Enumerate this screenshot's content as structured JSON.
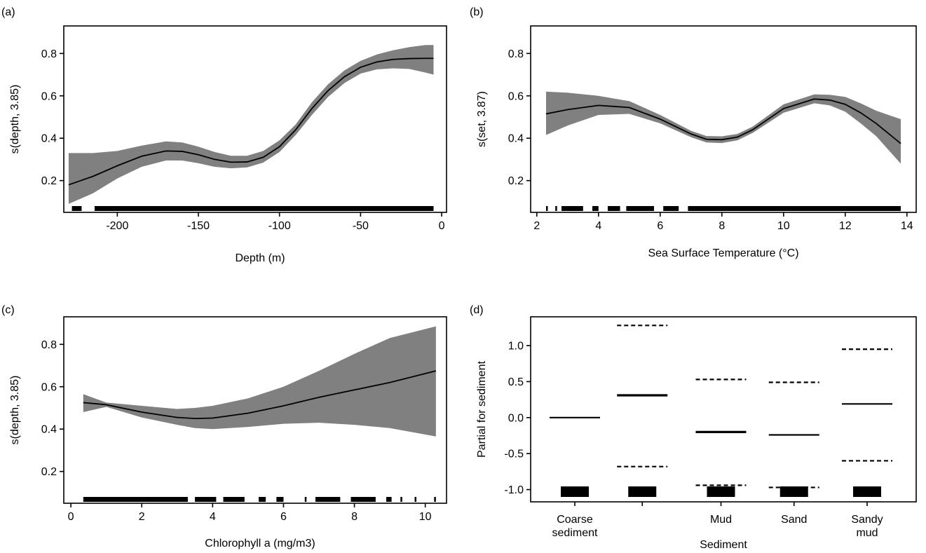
{
  "chart_data": [
    {
      "panel": "(a)",
      "type": "line",
      "xlabel": "Depth (m)",
      "ylabel": "s(depth, 3.85)",
      "xlim": [
        -233,
        3
      ],
      "ylim": [
        0.05,
        0.93
      ],
      "xticks": [
        -200,
        -150,
        -100,
        -50,
        0
      ],
      "yticks": [
        0.2,
        0.4,
        0.6,
        0.8
      ],
      "tick_labels_x": [
        "-200",
        "-150",
        "-100",
        "-50",
        "0"
      ],
      "tick_labels_y": [
        "0.2",
        "0.4",
        "0.6",
        "0.8"
      ],
      "series": [
        {
          "x": [
            -230,
            -215,
            -200,
            -185,
            -170,
            -160,
            -150,
            -140,
            -130,
            -120,
            -110,
            -100,
            -90,
            -80,
            -70,
            -60,
            -50,
            -40,
            -30,
            -20,
            -10,
            -5
          ],
          "fit": [
            0.18,
            0.22,
            0.27,
            0.315,
            0.34,
            0.338,
            0.322,
            0.3,
            0.287,
            0.288,
            0.31,
            0.36,
            0.44,
            0.54,
            0.625,
            0.69,
            0.735,
            0.76,
            0.772,
            0.776,
            0.777,
            0.777
          ],
          "lower": [
            0.09,
            0.14,
            0.21,
            0.265,
            0.295,
            0.295,
            0.282,
            0.265,
            0.258,
            0.262,
            0.285,
            0.335,
            0.415,
            0.51,
            0.595,
            0.66,
            0.705,
            0.725,
            0.73,
            0.727,
            0.71,
            0.7
          ],
          "upper": [
            0.33,
            0.33,
            0.34,
            0.365,
            0.385,
            0.38,
            0.36,
            0.335,
            0.317,
            0.317,
            0.34,
            0.39,
            0.465,
            0.57,
            0.655,
            0.72,
            0.765,
            0.795,
            0.815,
            0.83,
            0.84,
            0.84
          ]
        }
      ],
      "rug_segments": [
        [
          -228,
          -222
        ],
        [
          -214,
          -5
        ]
      ]
    },
    {
      "panel": "(b)",
      "type": "line",
      "xlabel": "Sea Surface Temperature (°C)",
      "ylabel": "s(set, 3.87)",
      "xlim": [
        1.8,
        14.3
      ],
      "ylim": [
        0.05,
        0.93
      ],
      "xticks": [
        2,
        4,
        6,
        8,
        10,
        12,
        14
      ],
      "yticks": [
        0.2,
        0.4,
        0.6,
        0.8
      ],
      "tick_labels_x": [
        "2",
        "4",
        "6",
        "8",
        "10",
        "12",
        "14"
      ],
      "tick_labels_y": [
        "0.2",
        "0.4",
        "0.6",
        "0.8"
      ],
      "series": [
        {
          "x": [
            2.3,
            3.0,
            4.0,
            5.0,
            6.0,
            7.0,
            7.5,
            8.0,
            8.5,
            9.0,
            10.0,
            11.0,
            11.5,
            12.0,
            12.5,
            13.0,
            13.8
          ],
          "fit": [
            0.515,
            0.535,
            0.555,
            0.545,
            0.49,
            0.42,
            0.395,
            0.393,
            0.405,
            0.44,
            0.54,
            0.585,
            0.58,
            0.56,
            0.52,
            0.47,
            0.375
          ],
          "lower": [
            0.415,
            0.46,
            0.51,
            0.515,
            0.47,
            0.405,
            0.38,
            0.377,
            0.39,
            0.425,
            0.52,
            0.565,
            0.555,
            0.525,
            0.47,
            0.41,
            0.28
          ],
          "upper": [
            0.62,
            0.615,
            0.6,
            0.575,
            0.51,
            0.435,
            0.41,
            0.409,
            0.42,
            0.455,
            0.56,
            0.607,
            0.605,
            0.595,
            0.565,
            0.53,
            0.49
          ]
        }
      ],
      "rug_segments": [
        [
          2.3,
          2.35
        ],
        [
          2.6,
          2.65
        ],
        [
          2.8,
          3.5
        ],
        [
          3.8,
          4.0
        ],
        [
          4.3,
          4.7
        ],
        [
          4.9,
          5.8
        ],
        [
          6.1,
          6.6
        ],
        [
          6.9,
          13.8
        ]
      ]
    },
    {
      "panel": "(c)",
      "type": "line",
      "xlabel": "Chlorophyll a (mg/m3)",
      "ylabel": "s(depth, 3.85)",
      "xlim": [
        -0.2,
        10.6
      ],
      "ylim": [
        0.05,
        0.93
      ],
      "xticks": [
        0,
        2,
        4,
        6,
        8,
        10
      ],
      "yticks": [
        0.2,
        0.4,
        0.6,
        0.8
      ],
      "tick_labels_x": [
        "0",
        "2",
        "4",
        "6",
        "8",
        "10"
      ],
      "tick_labels_y": [
        "0.2",
        "0.4",
        "0.6",
        "0.8"
      ],
      "series": [
        {
          "x": [
            0.35,
            1.0,
            2.0,
            3.0,
            3.5,
            4.0,
            5.0,
            6.0,
            7.0,
            8.0,
            9.0,
            10.3
          ],
          "fit": [
            0.525,
            0.515,
            0.48,
            0.455,
            0.45,
            0.452,
            0.475,
            0.51,
            0.55,
            0.585,
            0.62,
            0.675
          ],
          "lower": [
            0.48,
            0.505,
            0.455,
            0.42,
            0.405,
            0.4,
            0.41,
            0.425,
            0.43,
            0.42,
            0.405,
            0.365
          ],
          "upper": [
            0.565,
            0.525,
            0.51,
            0.495,
            0.5,
            0.51,
            0.545,
            0.6,
            0.675,
            0.755,
            0.83,
            0.885
          ]
        }
      ],
      "rug_segments": [
        [
          0.35,
          3.3
        ],
        [
          3.5,
          4.1
        ],
        [
          4.3,
          4.9
        ],
        [
          5.3,
          5.5
        ],
        [
          5.8,
          6.0
        ],
        [
          6.6,
          6.65
        ],
        [
          6.9,
          7.6
        ],
        [
          7.9,
          8.6
        ],
        [
          8.9,
          9.05
        ],
        [
          9.3,
          9.35
        ],
        [
          9.7,
          9.75
        ],
        [
          10.25,
          10.3
        ]
      ]
    },
    {
      "panel": "(d)",
      "type": "bar",
      "xlabel": "Sediment",
      "ylabel": "Partial for sediment",
      "ylim": [
        -1.17,
        1.4
      ],
      "yticks": [
        -1.0,
        -0.5,
        0.0,
        0.5,
        1.0
      ],
      "tick_labels_y": [
        "-1.0",
        "-0.5",
        "0.0",
        "0.5",
        "1.0"
      ],
      "categories": [
        [
          "Coarse",
          "sediment"
        ],
        [
          ""
        ],
        [
          "Mud"
        ],
        [
          "Sand"
        ],
        [
          "Sandy",
          "mud"
        ]
      ],
      "estimate": [
        0.0,
        0.31,
        -0.2,
        -0.24,
        0.19
      ],
      "upper": [
        null,
        1.28,
        0.53,
        0.49,
        0.95
      ],
      "lower": [
        null,
        -0.68,
        -0.94,
        -0.97,
        -0.6
      ]
    }
  ]
}
